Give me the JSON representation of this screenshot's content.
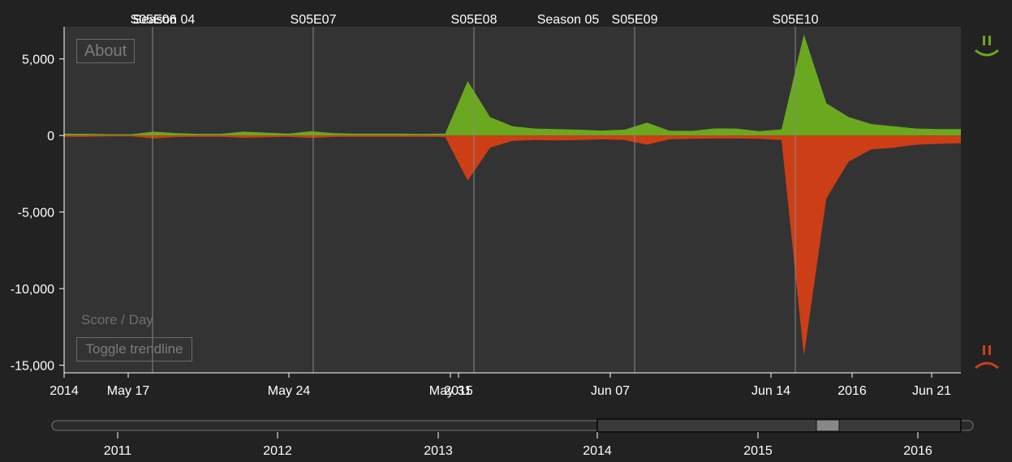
{
  "ui": {
    "about_label": "About",
    "toggle_trendline_label": "Toggle trendline",
    "score_label": "Score / Day"
  },
  "colors": {
    "positive": "#6aa81f",
    "negative": "#cc3e16",
    "plot_bg": "#333333",
    "page_bg": "#222222"
  },
  "chart_data": {
    "type": "area",
    "y_ticks": [
      "5,000",
      "0",
      "-5,000",
      "-10,000",
      "-15,000"
    ],
    "y_tick_values": [
      5000,
      0,
      -5000,
      -10000,
      -15000
    ],
    "ylim": [
      -15500,
      7100
    ],
    "x_ticks": [
      "2014",
      "May 17",
      "May 24",
      "May 31",
      "2015",
      "Jun 07",
      "Jun 14",
      "2016",
      "Jun 21"
    ],
    "episode_markers": [
      {
        "label": "S05E06",
        "shown_as": "S05E06"
      },
      {
        "label": "Season 04"
      },
      {
        "label": "S05E07"
      },
      {
        "label": "S05E08"
      },
      {
        "label": "Season 05"
      },
      {
        "label": "S05E09"
      },
      {
        "label": "S05E10"
      }
    ],
    "series": [
      {
        "values": [
          120,
          110,
          80,
          80,
          250,
          150,
          110,
          110,
          250,
          190,
          120,
          280,
          150,
          120,
          120,
          120,
          100,
          130,
          3550,
          1200,
          600,
          450,
          420,
          380,
          320,
          380,
          840,
          310,
          300,
          460,
          450,
          280,
          400,
          6600,
          2100,
          1200,
          750,
          600,
          450,
          420,
          420
        ]
      },
      {
        "values": [
          -80,
          -80,
          -60,
          -60,
          -200,
          -100,
          -80,
          -80,
          -150,
          -120,
          -80,
          -160,
          -100,
          -80,
          -80,
          -80,
          -80,
          -100,
          -2950,
          -800,
          -350,
          -300,
          -320,
          -300,
          -250,
          -300,
          -600,
          -250,
          -220,
          -200,
          -200,
          -220,
          -300,
          -14400,
          -4100,
          -1700,
          -900,
          -800,
          -600,
          -550,
          -500
        ]
      }
    ],
    "navigator": {
      "ticks": [
        "2011",
        "2012",
        "2013",
        "2014",
        "2015",
        "2016"
      ]
    },
    "icons": [
      "happy-face-icon",
      "sad-face-icon"
    ]
  }
}
